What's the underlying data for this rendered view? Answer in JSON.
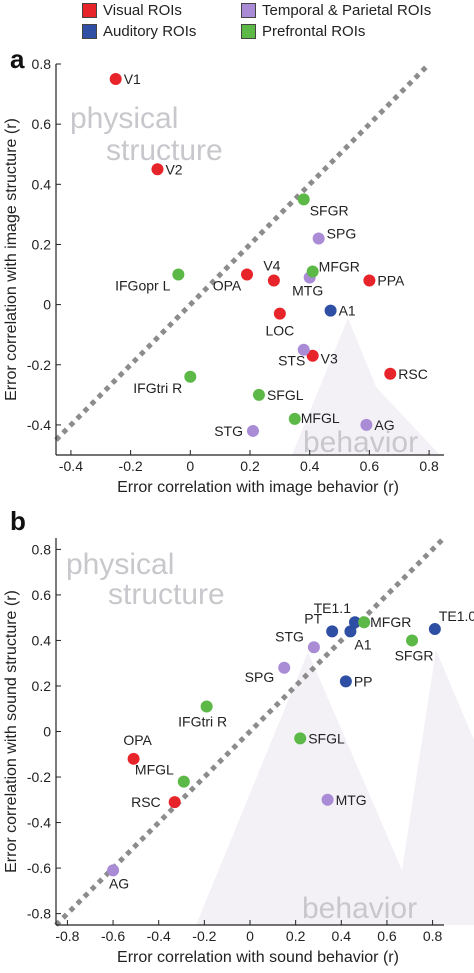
{
  "legend": {
    "items": [
      {
        "label": "Visual ROIs",
        "color": "#e8242b"
      },
      {
        "label": "Auditory ROIs",
        "color": "#2e4fa3"
      },
      {
        "label": "Temporal & Parietal ROIs",
        "color": "#a98bd6"
      },
      {
        "label": "Prefrontal ROIs",
        "color": "#5cb847"
      }
    ]
  },
  "colors": {
    "Visual": "#e8242b",
    "Auditory": "#2e4fa3",
    "Temporal & Parietal": "#a98bd6",
    "Prefrontal": "#5cb847",
    "diagonal": "#8c8c8c",
    "watermark": "#c8c8cc",
    "mountain": "#f3f1f6"
  },
  "chart_data": [
    {
      "panel": "a",
      "type": "scatter",
      "xlabel": "Error correlation with image behavior (r)",
      "ylabel": "Error correlation with image structure (r)",
      "xlim": [
        -0.45,
        0.85
      ],
      "ylim": [
        -0.5,
        0.8
      ],
      "xticks": [
        "-0.4",
        "-0.2",
        "0",
        "0.2",
        "0.4",
        "0.6",
        "0.8"
      ],
      "yticks": [
        "0.8",
        "0.6",
        "0.4",
        "0.2",
        "0",
        "-0.2",
        "-0.4"
      ],
      "watermarks": [
        "physical",
        "structure",
        "behavior"
      ],
      "diagonal": "identity",
      "points": [
        {
          "label": "V1",
          "x": -0.25,
          "y": 0.75,
          "group": "Visual"
        },
        {
          "label": "V2",
          "x": -0.11,
          "y": 0.45,
          "group": "Visual"
        },
        {
          "label": "V4",
          "x": 0.28,
          "y": 0.08,
          "group": "Visual"
        },
        {
          "label": "OPA",
          "x": 0.19,
          "y": 0.1,
          "group": "Visual"
        },
        {
          "label": "LOC",
          "x": 0.3,
          "y": -0.03,
          "group": "Visual"
        },
        {
          "label": "V3",
          "x": 0.41,
          "y": -0.17,
          "group": "Visual"
        },
        {
          "label": "PPA",
          "x": 0.6,
          "y": 0.08,
          "group": "Visual"
        },
        {
          "label": "RSC",
          "x": 0.67,
          "y": -0.23,
          "group": "Visual"
        },
        {
          "label": "A1",
          "x": 0.47,
          "y": -0.02,
          "group": "Auditory"
        },
        {
          "label": "SPG",
          "x": 0.43,
          "y": 0.22,
          "group": "Temporal & Parietal"
        },
        {
          "label": "MTG",
          "x": 0.4,
          "y": 0.09,
          "group": "Temporal & Parietal"
        },
        {
          "label": "STS",
          "x": 0.38,
          "y": -0.15,
          "group": "Temporal & Parietal"
        },
        {
          "label": "STG",
          "x": 0.21,
          "y": -0.42,
          "group": "Temporal & Parietal"
        },
        {
          "label": "AG",
          "x": 0.59,
          "y": -0.4,
          "group": "Temporal & Parietal"
        },
        {
          "label": "SFGR",
          "x": 0.38,
          "y": 0.35,
          "group": "Prefrontal"
        },
        {
          "label": "MFGR",
          "x": 0.41,
          "y": 0.11,
          "group": "Prefrontal"
        },
        {
          "label": "IFGopr L",
          "x": -0.04,
          "y": 0.1,
          "group": "Prefrontal"
        },
        {
          "label": "IFGtri R",
          "x": 0.0,
          "y": -0.24,
          "group": "Prefrontal"
        },
        {
          "label": "SFGL",
          "x": 0.23,
          "y": -0.3,
          "group": "Prefrontal"
        },
        {
          "label": "MFGL",
          "x": 0.35,
          "y": -0.38,
          "group": "Prefrontal"
        }
      ]
    },
    {
      "panel": "b",
      "type": "scatter",
      "xlabel": "Error correlation with sound behavior (r)",
      "ylabel": "Error correlation with sound structure (r)",
      "xlim": [
        -0.85,
        0.85
      ],
      "ylim": [
        -0.85,
        0.85
      ],
      "xticks": [
        "-0.8",
        "-0.6",
        "-0.4",
        "-0.2",
        "0",
        "0.2",
        "0.4",
        "0.6",
        "0.8"
      ],
      "yticks": [
        "0.8",
        "0.6",
        "0.4",
        "0.2",
        "0",
        "-0.2",
        "-0.4",
        "-0.6",
        "-0.8"
      ],
      "watermarks": [
        "physical",
        "structure",
        "behavior"
      ],
      "diagonal": "identity",
      "points": [
        {
          "label": "OPA",
          "x": -0.51,
          "y": -0.12,
          "group": "Visual"
        },
        {
          "label": "RSC",
          "x": -0.33,
          "y": -0.31,
          "group": "Visual"
        },
        {
          "label": "TE1.1",
          "x": 0.46,
          "y": 0.48,
          "group": "Auditory"
        },
        {
          "label": "PT",
          "x": 0.36,
          "y": 0.44,
          "group": "Auditory"
        },
        {
          "label": "A1",
          "x": 0.44,
          "y": 0.44,
          "group": "Auditory"
        },
        {
          "label": "TE1.0",
          "x": 0.81,
          "y": 0.45,
          "group": "Auditory"
        },
        {
          "label": "PP",
          "x": 0.42,
          "y": 0.22,
          "group": "Auditory"
        },
        {
          "label": "STG",
          "x": 0.28,
          "y": 0.37,
          "group": "Temporal & Parietal"
        },
        {
          "label": "SPG",
          "x": 0.15,
          "y": 0.28,
          "group": "Temporal & Parietal"
        },
        {
          "label": "MTG",
          "x": 0.34,
          "y": -0.3,
          "group": "Temporal & Parietal"
        },
        {
          "label": "AG",
          "x": -0.6,
          "y": -0.61,
          "group": "Temporal & Parietal"
        },
        {
          "label": "MFGR",
          "x": 0.5,
          "y": 0.48,
          "group": "Prefrontal"
        },
        {
          "label": "SFGR",
          "x": 0.71,
          "y": 0.4,
          "group": "Prefrontal"
        },
        {
          "label": "IFGtri R",
          "x": -0.19,
          "y": 0.11,
          "group": "Prefrontal"
        },
        {
          "label": "SFGL",
          "x": 0.22,
          "y": -0.03,
          "group": "Prefrontal"
        },
        {
          "label": "MFGL",
          "x": -0.29,
          "y": -0.22,
          "group": "Prefrontal"
        }
      ]
    }
  ],
  "panels": [
    {
      "letter": "a"
    },
    {
      "letter": "b"
    }
  ]
}
